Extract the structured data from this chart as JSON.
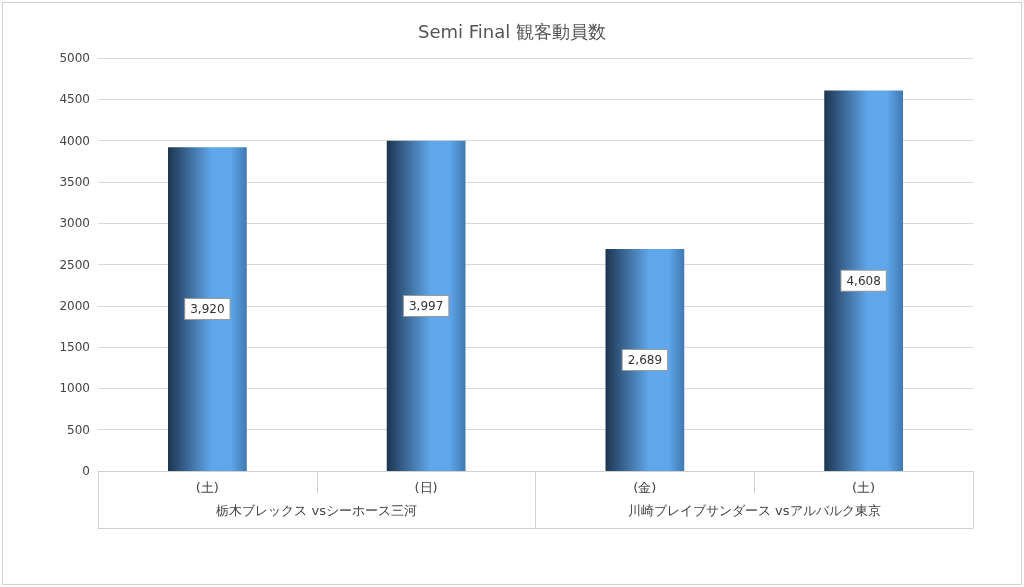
{
  "chart_data": {
    "type": "bar",
    "title": "Semi Final 観客動員数",
    "categories": [
      "(土)",
      "(日)",
      "(金)",
      "(土)"
    ],
    "values": [
      3920,
      3997,
      2689,
      4608
    ],
    "value_labels": [
      "3,920",
      "3,997",
      "2,689",
      "4,608"
    ],
    "color": "#5fa6ea",
    "ylim": [
      0,
      5000
    ],
    "yticks": [
      0,
      500,
      1000,
      1500,
      2000,
      2500,
      3000,
      3500,
      4000,
      4500,
      5000
    ],
    "grid": "y",
    "annotations": [
      "栃木ブレックス vsシーホース三河",
      "川崎ブレイブサンダース vsアルバルク東京"
    ]
  }
}
